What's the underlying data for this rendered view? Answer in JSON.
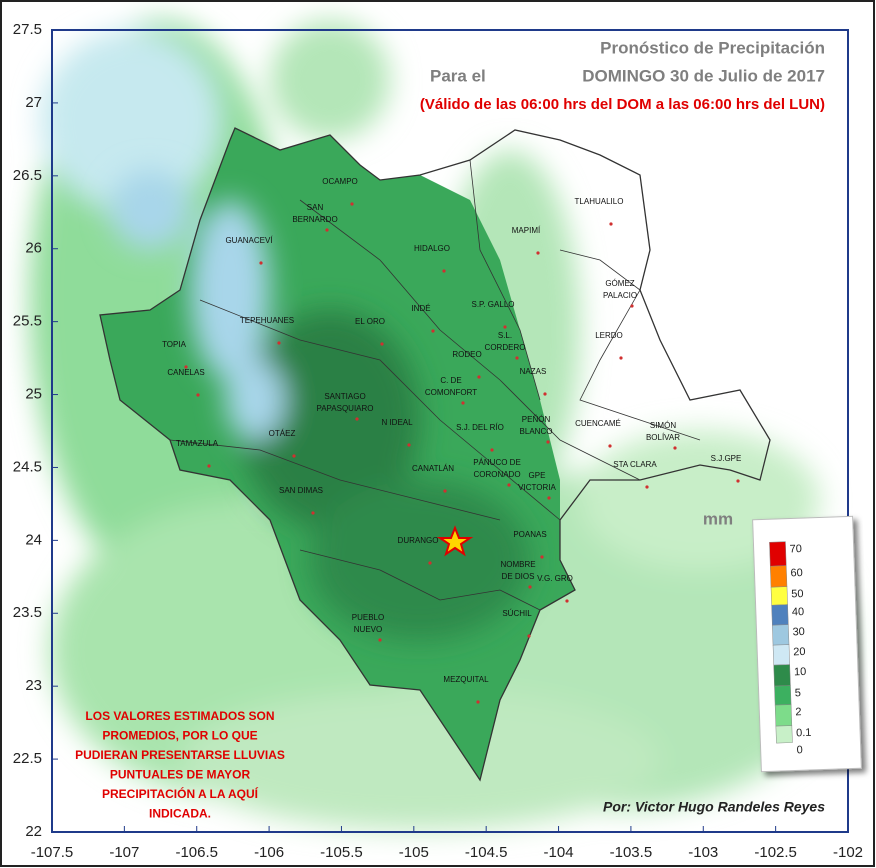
{
  "map": {
    "title": "Pronóstico de Precipitación",
    "subtitle_prefix": "Para el",
    "subtitle": "DOMINGO 30 de Julio de 2017",
    "validity": "(Válido de las 06:00 hrs del DOM a las 06:00 hrs del LUN)",
    "xlim": [
      -107.5,
      -102
    ],
    "ylim": [
      22,
      27.5
    ],
    "xticks": [
      -107.5,
      -107,
      -106.5,
      -106,
      -105.5,
      -105,
      -104.5,
      -104,
      -103.5,
      -103,
      -102.5,
      -102
    ],
    "yticks": [
      22,
      22.5,
      23,
      23.5,
      24,
      24.5,
      25,
      25.5,
      26,
      26.5,
      27,
      27.5
    ],
    "municipalities": [
      [
        "OCAMPO"
      ],
      [
        "SAN",
        "BERNARDO"
      ],
      [
        "GUANACEVÍ"
      ],
      [
        "HIDALGO"
      ],
      [
        "MAPIMÍ"
      ],
      [
        "TLAHUALILO"
      ],
      [
        "GÓMEZ",
        "PALACIO"
      ],
      [
        "LERDO"
      ],
      [
        "INDÉ"
      ],
      [
        "S.P. GALLO"
      ],
      [
        "TEPEHUANES"
      ],
      [
        "EL ORO"
      ],
      [
        "TOPIA"
      ],
      [
        "CANELAS"
      ],
      [
        "S.L.",
        "CORDERO"
      ],
      [
        "RODEO"
      ],
      [
        "NAZAS"
      ],
      [
        "C. DE",
        "COMONFORT"
      ],
      [
        "SANTIAGO",
        "PAPASQUIARO"
      ],
      [
        "PEÑÓN",
        "BLANCO"
      ],
      [
        "CUENCAMÉ"
      ],
      [
        "SIMÓN",
        "BOLÍVAR"
      ],
      [
        "TAMAZULA"
      ],
      [
        "OTÁEZ"
      ],
      [
        "N IDEAL"
      ],
      [
        "S.J. DEL RÍO"
      ],
      [
        "S.J.GPE"
      ],
      [
        "STA CLARA"
      ],
      [
        "CANATLÁN"
      ],
      [
        "PÁNUCO DE",
        "CORONADO"
      ],
      [
        "GPE",
        "VICTORIA"
      ],
      [
        "SAN DIMAS"
      ],
      [
        "DURANGO"
      ],
      [
        "POANAS"
      ],
      [
        "NOMBRE",
        "DE DIOS"
      ],
      [
        "V.G. GRO"
      ],
      [
        "PUEBLO",
        "NUEVO"
      ],
      [
        "SÚCHIL"
      ],
      [
        "MEZQUITAL"
      ]
    ],
    "legend": {
      "unit": "mm",
      "levels": [
        {
          "value": 70,
          "color": "#e00000"
        },
        {
          "value": 60,
          "color": "#ff8000"
        },
        {
          "value": 50,
          "color": "#ffff40"
        },
        {
          "value": 40,
          "color": "#4f81bd"
        },
        {
          "value": 30,
          "color": "#9ec8e0"
        },
        {
          "value": 20,
          "color": "#cfe8f4"
        },
        {
          "value": 10,
          "color": "#2e8b4a"
        },
        {
          "value": 5,
          "color": "#3cb060"
        },
        {
          "value": 2,
          "color": "#7ddc8a"
        },
        {
          "value": 0.1,
          "color": "#c8f0c8"
        },
        {
          "value": 0,
          "color": "#ffffff"
        }
      ]
    },
    "note": [
      "LOS VALORES ESTIMADOS SON",
      "PROMEDIOS, POR LO QUE",
      "PUDIERAN PRESENTARSE LLUVIAS",
      "PUNTUALES DE MAYOR",
      "PRECIPITACIÓN A LA AQUÍ",
      "INDICADA."
    ],
    "author": "Por: Victor Hugo Randeles Reyes"
  }
}
